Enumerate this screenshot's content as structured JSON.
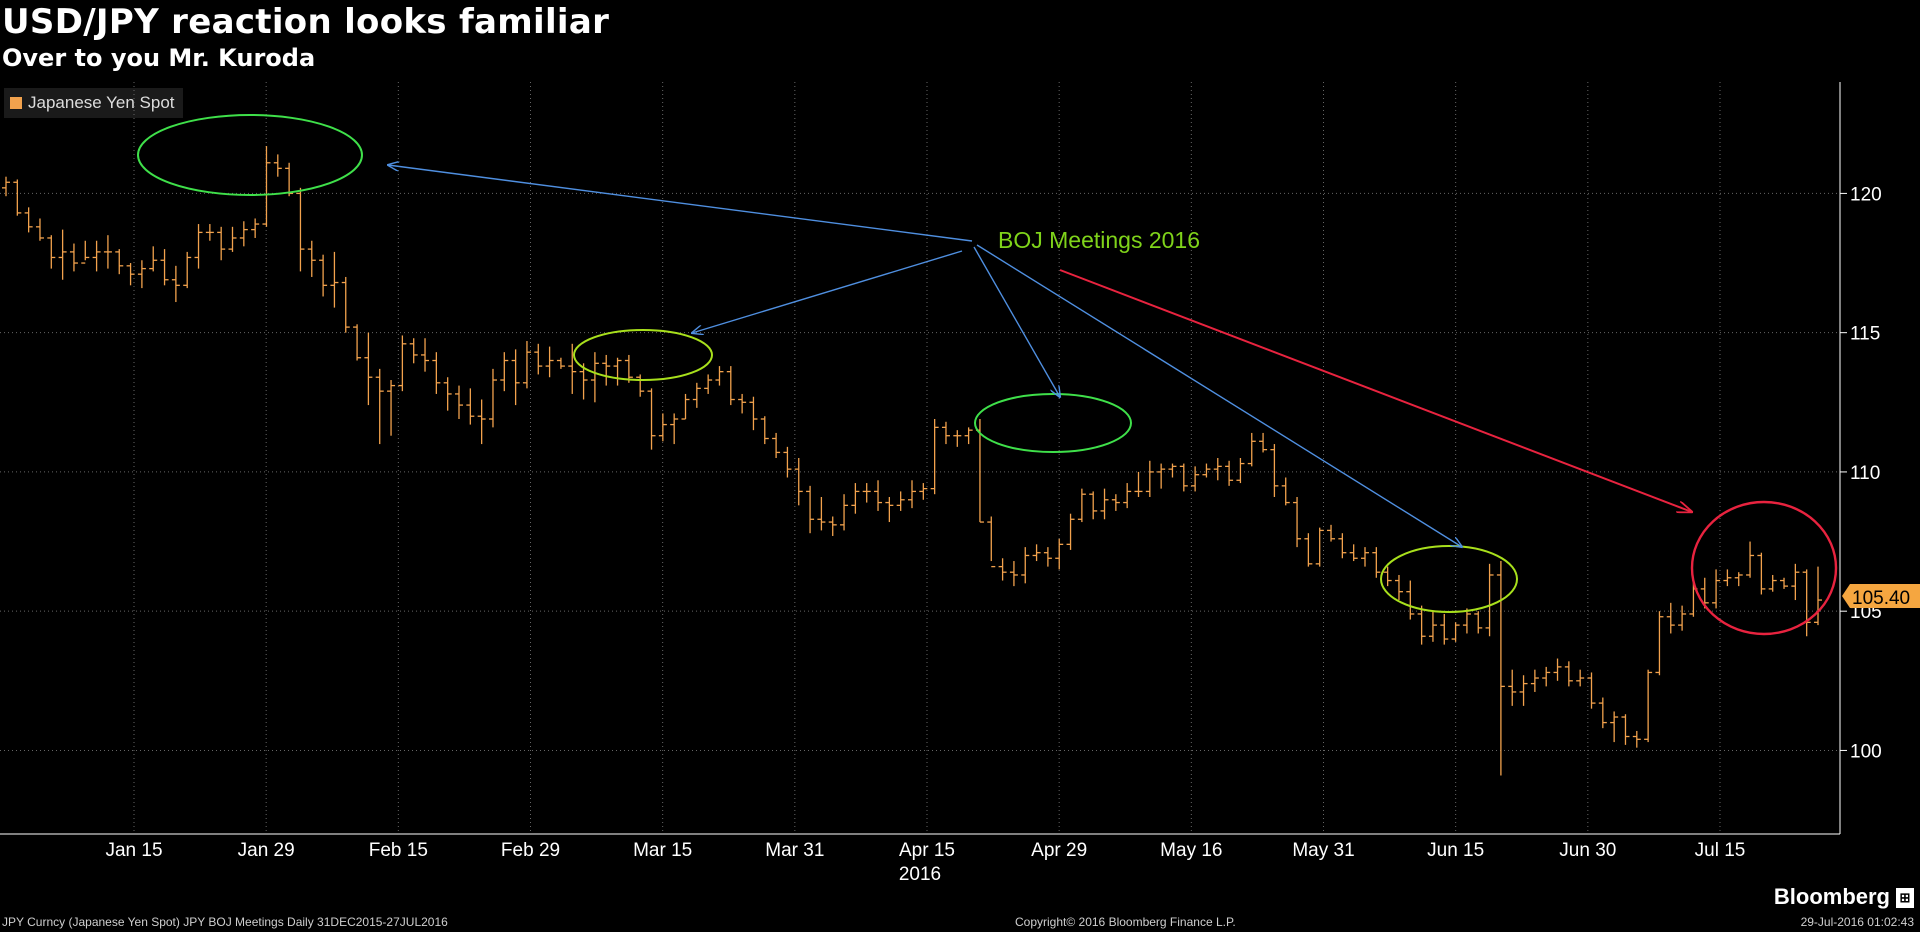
{
  "title": "USD/JPY reaction looks familiar",
  "subtitle": "Over to you Mr. Kuroda",
  "legend": {
    "label": "Japanese Yen Spot",
    "color": "#f2a24d"
  },
  "annotation": {
    "text": "BOJ Meetings 2016",
    "color": "#7fd31a"
  },
  "last_price": "105.40",
  "brand": "Bloomberg",
  "footer": {
    "left": "JPY Curncy (Japanese Yen Spot) JPY BOJ Meetings  Daily 31DEC2015-27JUL2016",
    "center": "Copyright© 2016 Bloomberg Finance L.P.",
    "right": "29-Jul-2016 01:02:43"
  },
  "colors": {
    "bar": "#f2a24d",
    "ellipse_green": "#3fe04a",
    "ellipse_lime": "#a8e01c",
    "ellipse_red": "#e8233f",
    "arrow_blue": "#4f8fe0",
    "arrow_red": "#e8233f"
  },
  "chart_data": {
    "type": "ohlc",
    "title": "USD/JPY reaction looks familiar",
    "subtitle": "Over to you Mr. Kuroda",
    "series": [
      {
        "name": "Japanese Yen Spot"
      }
    ],
    "y_ticks": [
      100,
      105,
      110,
      115,
      120
    ],
    "ylim": [
      97,
      124
    ],
    "x_tick_labels": [
      "Jan 15",
      "Jan 29",
      "Feb 15",
      "Feb 29",
      "Mar 15",
      "Mar 31",
      "Apr 15",
      "Apr 29",
      "May 16",
      "May 31",
      "Jun 15",
      "Jun 30",
      "Jul 15"
    ],
    "x_sublabel": "2016",
    "grid": true,
    "legend_position": "top-left",
    "last_value": 105.4,
    "points": [
      [
        120.2,
        120.6,
        119.9,
        120.4
      ],
      [
        120.4,
        120.5,
        119.2,
        119.3
      ],
      [
        119.3,
        119.5,
        118.6,
        118.8
      ],
      [
        118.8,
        119.1,
        118.3,
        118.4
      ],
      [
        118.4,
        118.5,
        117.3,
        117.7
      ],
      [
        117.7,
        118.7,
        116.9,
        117.9
      ],
      [
        117.9,
        118.2,
        117.2,
        117.5
      ],
      [
        117.5,
        118.3,
        117.6,
        117.7
      ],
      [
        117.7,
        118.3,
        117.2,
        117.9
      ],
      [
        117.9,
        118.5,
        117.3,
        117.9
      ],
      [
        117.9,
        118.0,
        117.1,
        117.4
      ],
      [
        117.4,
        117.5,
        116.7,
        117.1
      ],
      [
        117.1,
        117.6,
        116.6,
        117.3
      ],
      [
        117.3,
        118.1,
        117.2,
        117.6
      ],
      [
        117.6,
        118.0,
        116.7,
        116.9
      ],
      [
        116.9,
        117.4,
        116.1,
        116.7
      ],
      [
        116.7,
        117.9,
        116.6,
        117.7
      ],
      [
        117.7,
        118.9,
        117.3,
        118.6
      ],
      [
        118.6,
        118.9,
        118.3,
        118.6
      ],
      [
        118.6,
        118.8,
        117.6,
        118.0
      ],
      [
        118.0,
        118.8,
        117.9,
        118.4
      ],
      [
        118.4,
        119.0,
        118.1,
        118.7
      ],
      [
        118.7,
        119.1,
        118.4,
        118.9
      ],
      [
        118.9,
        121.7,
        118.8,
        121.1
      ],
      [
        121.1,
        121.4,
        120.6,
        120.9
      ],
      [
        120.9,
        121.1,
        119.9,
        120.0
      ],
      [
        120.0,
        120.2,
        117.2,
        118.0
      ],
      [
        118.0,
        118.3,
        117.0,
        117.6
      ],
      [
        117.6,
        117.8,
        116.3,
        116.7
      ],
      [
        116.7,
        117.9,
        115.9,
        116.8
      ],
      [
        116.8,
        117.0,
        115.0,
        115.2
      ],
      [
        115.2,
        115.3,
        114.0,
        114.1
      ],
      [
        114.1,
        115.0,
        112.4,
        113.4
      ],
      [
        113.4,
        113.7,
        111.0,
        112.9
      ],
      [
        112.9,
        113.3,
        111.3,
        113.1
      ],
      [
        113.1,
        114.9,
        112.9,
        114.6
      ],
      [
        114.6,
        114.8,
        113.9,
        114.2
      ],
      [
        114.2,
        114.8,
        113.6,
        114.0
      ],
      [
        114.0,
        114.3,
        112.8,
        113.2
      ],
      [
        113.2,
        113.4,
        112.2,
        112.8
      ],
      [
        112.8,
        113.1,
        111.9,
        112.4
      ],
      [
        112.4,
        113.0,
        111.7,
        112.0
      ],
      [
        112.0,
        112.6,
        111.0,
        111.9
      ],
      [
        111.9,
        113.7,
        111.6,
        113.3
      ],
      [
        113.3,
        114.3,
        112.9,
        114.0
      ],
      [
        114.0,
        114.4,
        112.4,
        113.2
      ],
      [
        113.2,
        114.7,
        113.0,
        114.3
      ],
      [
        114.3,
        114.6,
        113.5,
        113.8
      ],
      [
        113.8,
        114.5,
        113.4,
        114.0
      ],
      [
        114.0,
        114.1,
        113.7,
        113.8
      ],
      [
        113.8,
        114.6,
        112.8,
        113.6
      ],
      [
        113.6,
        113.9,
        112.6,
        113.3
      ],
      [
        113.3,
        114.3,
        112.5,
        113.9
      ],
      [
        113.9,
        114.2,
        113.1,
        113.8
      ],
      [
        113.8,
        114.1,
        113.1,
        114.0
      ],
      [
        114.0,
        114.2,
        113.2,
        113.4
      ],
      [
        113.4,
        113.5,
        112.7,
        112.9
      ],
      [
        112.9,
        113.0,
        110.8,
        111.3
      ],
      [
        111.3,
        112.1,
        111.1,
        111.7
      ],
      [
        111.7,
        112.1,
        111.0,
        111.9
      ],
      [
        111.9,
        112.8,
        111.9,
        112.6
      ],
      [
        112.6,
        113.2,
        112.3,
        113.0
      ],
      [
        113.0,
        113.5,
        112.8,
        113.3
      ],
      [
        113.3,
        113.8,
        113.1,
        113.6
      ],
      [
        113.6,
        113.8,
        112.4,
        112.6
      ],
      [
        112.6,
        112.8,
        112.1,
        112.5
      ],
      [
        112.5,
        112.7,
        111.5,
        111.9
      ],
      [
        111.9,
        112.0,
        111.0,
        111.2
      ],
      [
        111.2,
        111.4,
        110.5,
        110.7
      ],
      [
        110.7,
        110.9,
        109.8,
        110.1
      ],
      [
        110.1,
        110.5,
        108.8,
        109.3
      ],
      [
        109.3,
        109.5,
        107.8,
        108.3
      ],
      [
        108.3,
        109.1,
        107.9,
        108.2
      ],
      [
        108.2,
        108.4,
        107.7,
        108.1
      ],
      [
        108.1,
        109.2,
        107.9,
        108.8
      ],
      [
        108.8,
        109.6,
        108.5,
        109.3
      ],
      [
        109.3,
        109.6,
        108.9,
        109.3
      ],
      [
        109.3,
        109.7,
        108.6,
        108.9
      ],
      [
        108.9,
        109.1,
        108.2,
        108.8
      ],
      [
        108.8,
        109.3,
        108.6,
        109.0
      ],
      [
        109.0,
        109.7,
        108.7,
        109.3
      ],
      [
        109.3,
        109.6,
        109.0,
        109.4
      ],
      [
        109.4,
        111.9,
        109.2,
        111.6
      ],
      [
        111.6,
        111.8,
        111.0,
        111.3
      ],
      [
        111.3,
        111.5,
        110.9,
        111.3
      ],
      [
        111.3,
        111.6,
        111.0,
        111.5
      ],
      [
        111.5,
        111.9,
        108.2,
        108.2
      ],
      [
        108.2,
        108.4,
        106.8,
        106.6
      ],
      [
        106.6,
        106.9,
        106.1,
        106.4
      ],
      [
        106.4,
        106.8,
        105.9,
        106.3
      ],
      [
        106.3,
        107.3,
        106.0,
        107.0
      ],
      [
        107.0,
        107.4,
        106.8,
        107.1
      ],
      [
        107.1,
        107.3,
        106.6,
        106.9
      ],
      [
        106.9,
        107.6,
        106.5,
        107.4
      ],
      [
        107.4,
        108.5,
        107.2,
        108.3
      ],
      [
        108.3,
        109.4,
        108.2,
        109.2
      ],
      [
        109.2,
        109.3,
        108.3,
        108.6
      ],
      [
        108.6,
        109.4,
        108.3,
        109.0
      ],
      [
        109.0,
        109.2,
        108.6,
        108.9
      ],
      [
        108.9,
        109.6,
        108.7,
        109.3
      ],
      [
        109.3,
        110.0,
        109.1,
        109.3
      ],
      [
        109.3,
        110.4,
        109.1,
        110.0
      ],
      [
        110.0,
        110.3,
        109.4,
        110.1
      ],
      [
        110.1,
        110.3,
        109.8,
        110.2
      ],
      [
        110.2,
        110.3,
        109.3,
        109.5
      ],
      [
        109.5,
        110.2,
        109.3,
        109.9
      ],
      [
        109.9,
        110.3,
        109.8,
        110.1
      ],
      [
        110.1,
        110.5,
        109.7,
        110.2
      ],
      [
        110.2,
        110.4,
        109.5,
        109.7
      ],
      [
        109.7,
        110.5,
        109.6,
        110.3
      ],
      [
        110.3,
        111.4,
        110.2,
        111.1
      ],
      [
        111.1,
        111.4,
        110.7,
        110.8
      ],
      [
        110.8,
        111.0,
        109.1,
        109.5
      ],
      [
        109.5,
        109.8,
        108.8,
        108.9
      ],
      [
        108.9,
        109.1,
        107.3,
        107.6
      ],
      [
        107.6,
        107.8,
        106.6,
        106.7
      ],
      [
        106.7,
        108.0,
        106.6,
        107.9
      ],
      [
        107.9,
        108.1,
        107.5,
        107.6
      ],
      [
        107.6,
        107.8,
        106.9,
        107.1
      ],
      [
        107.1,
        107.4,
        106.8,
        106.9
      ],
      [
        106.9,
        107.3,
        106.6,
        107.1
      ],
      [
        107.1,
        107.3,
        106.2,
        106.4
      ],
      [
        106.4,
        106.6,
        105.9,
        106.1
      ],
      [
        106.1,
        106.3,
        105.4,
        105.7
      ],
      [
        105.7,
        106.1,
        104.7,
        104.9
      ],
      [
        104.9,
        105.2,
        103.8,
        104.1
      ],
      [
        104.1,
        105.0,
        103.9,
        104.5
      ],
      [
        104.5,
        104.9,
        103.8,
        104.0
      ],
      [
        104.0,
        104.6,
        103.9,
        104.5
      ],
      [
        104.5,
        105.1,
        104.2,
        104.9
      ],
      [
        104.9,
        105.0,
        104.2,
        104.4
      ],
      [
        104.4,
        106.7,
        104.1,
        106.3
      ],
      [
        106.3,
        106.8,
        99.1,
        102.3
      ],
      [
        102.3,
        102.9,
        101.6,
        102.1
      ],
      [
        102.1,
        102.7,
        101.6,
        102.4
      ],
      [
        102.4,
        102.9,
        102.1,
        102.6
      ],
      [
        102.6,
        103.0,
        102.3,
        102.8
      ],
      [
        102.8,
        103.3,
        102.5,
        103.0
      ],
      [
        103.0,
        103.2,
        102.3,
        102.5
      ],
      [
        102.5,
        102.9,
        102.3,
        102.6
      ],
      [
        102.6,
        102.8,
        101.5,
        101.7
      ],
      [
        101.7,
        101.9,
        100.8,
        101.0
      ],
      [
        101.0,
        101.4,
        100.3,
        101.2
      ],
      [
        101.2,
        101.3,
        100.2,
        100.5
      ],
      [
        100.5,
        100.7,
        100.1,
        100.4
      ],
      [
        100.4,
        102.9,
        100.3,
        102.8
      ],
      [
        102.8,
        105.0,
        102.7,
        104.8
      ],
      [
        104.8,
        105.3,
        104.2,
        104.5
      ],
      [
        104.5,
        105.2,
        104.3,
        104.9
      ],
      [
        104.9,
        106.1,
        104.8,
        105.8
      ],
      [
        105.8,
        106.2,
        105.1,
        105.3
      ],
      [
        105.3,
        106.5,
        105.1,
        106.1
      ],
      [
        106.1,
        106.5,
        105.9,
        106.2
      ],
      [
        106.2,
        106.4,
        105.9,
        106.3
      ],
      [
        106.3,
        107.5,
        106.2,
        107.0
      ],
      [
        107.0,
        107.1,
        105.6,
        105.8
      ],
      [
        105.8,
        106.3,
        105.7,
        106.1
      ],
      [
        106.1,
        106.2,
        105.8,
        105.9
      ],
      [
        105.9,
        106.7,
        105.4,
        106.4
      ],
      [
        106.4,
        106.5,
        104.1,
        104.6
      ],
      [
        104.6,
        106.6,
        104.5,
        105.4
      ]
    ]
  }
}
